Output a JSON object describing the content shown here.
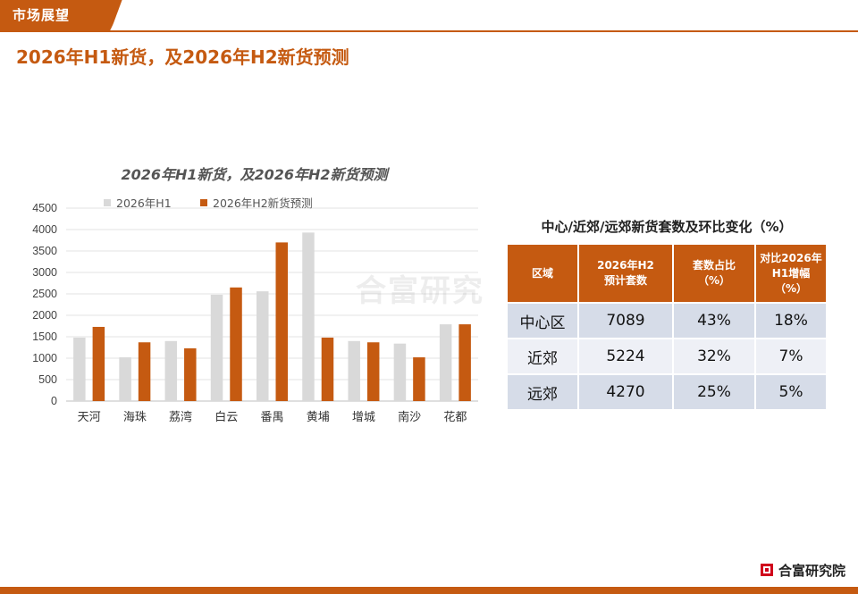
{
  "header": {
    "section_tag": "市场展望",
    "page_title": "2026年H1新货，及2026年H2新货预测"
  },
  "colors": {
    "accent": "#c55a11",
    "series_gray": "#d9d9d9",
    "series_orange": "#c55a11"
  },
  "chart_data": {
    "type": "bar",
    "title": "2026年H1新货，及2026年H2新货预测",
    "categories": [
      "天河",
      "海珠",
      "荔湾",
      "白云",
      "番禺",
      "黄埔",
      "增城",
      "南沙",
      "花都"
    ],
    "series": [
      {
        "name": "2026年H1",
        "values": [
          1480,
          1020,
          1400,
          2480,
          2560,
          3930,
          1400,
          1340,
          1790
        ]
      },
      {
        "name": "2026年H2新货预测",
        "values": [
          1730,
          1370,
          1230,
          2650,
          3700,
          1480,
          1370,
          1020,
          1790
        ]
      }
    ],
    "ylim": [
      0,
      4500
    ],
    "yticks": [
      0,
      500,
      1000,
      1500,
      2000,
      2500,
      3000,
      3500,
      4000,
      4500
    ],
    "grid": true,
    "legend_position": "top-left"
  },
  "table": {
    "title": "中心/近郊/远郊新货套数及环比变化（%）",
    "headers": [
      [
        "区域"
      ],
      [
        "2026年H2",
        "预计套数"
      ],
      [
        "套数占比",
        "（%）"
      ],
      [
        "对比2026年",
        "H1增幅（%）"
      ]
    ],
    "rows": [
      [
        "中心区",
        "7089",
        "43%",
        "18%"
      ],
      [
        "近郊",
        "5224",
        "32%",
        "7%"
      ],
      [
        "远郊",
        "4270",
        "25%",
        "5%"
      ]
    ]
  },
  "watermark": "合富研究",
  "footer": {
    "brand": "合富研究院"
  }
}
